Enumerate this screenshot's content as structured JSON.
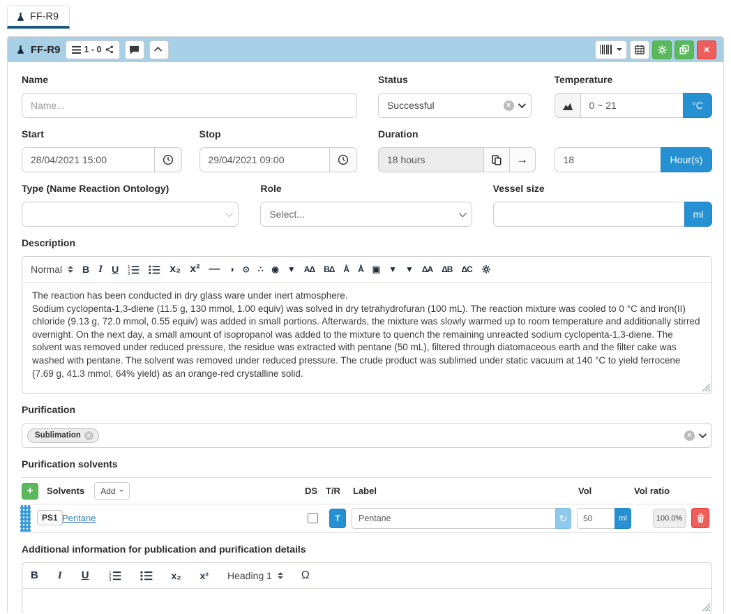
{
  "tab": {
    "label": "FF-R9"
  },
  "header": {
    "title": "FF-R9",
    "pages_badge": "1 - 0"
  },
  "icons": {
    "arrow_right": "→",
    "refresh": "↻",
    "close_x": "×",
    "plus": "+"
  },
  "form": {
    "name": {
      "label": "Name",
      "placeholder": "Name..."
    },
    "status": {
      "label": "Status",
      "value": "Successful"
    },
    "temperature": {
      "label": "Temperature",
      "value": "0 ~ 21",
      "unit": "°C"
    },
    "start": {
      "label": "Start",
      "value": "28/04/2021 15:00"
    },
    "stop": {
      "label": "Stop",
      "value": "29/04/2021 09:00"
    },
    "duration": {
      "label": "Duration",
      "display": "18 hours",
      "value": "18",
      "unit": "Hour(s)"
    },
    "type": {
      "label": "Type (Name Reaction Ontology)",
      "value": ""
    },
    "role": {
      "label": "Role",
      "placeholder": "Select..."
    },
    "vessel": {
      "label": "Vessel size",
      "value": "",
      "unit": "ml"
    }
  },
  "description": {
    "label": "Description",
    "toolbar": {
      "format": "Normal",
      "bold": "B",
      "italic": "I",
      "underline": "U",
      "subscript": "x₂",
      "superscript": "x²",
      "divider": "—",
      "custom": [
        {
          "name": "half-circle-icon",
          "glyph": "◑"
        },
        {
          "name": "drop-icon",
          "glyph": "⊙"
        },
        {
          "name": "molecule-dots-icon",
          "glyph": "∴"
        },
        {
          "name": "target-circle-icon",
          "glyph": "◉"
        },
        {
          "name": "funnel-p-icon",
          "glyph": "▼"
        },
        {
          "name": "flask-a-icon",
          "glyph": "AΔ"
        },
        {
          "name": "flask-b-icon",
          "glyph": "BΔ"
        },
        {
          "name": "figure-a-icon",
          "glyph": "Å"
        },
        {
          "name": "figure-b-icon",
          "glyph": "Å"
        },
        {
          "name": "note-box-icon",
          "glyph": "▣"
        },
        {
          "name": "funnel-in-icon",
          "glyph": "▼"
        },
        {
          "name": "funnel-out-icon",
          "glyph": "▼"
        },
        {
          "name": "flask-ta-icon",
          "glyph": "ΔA"
        },
        {
          "name": "flask-tb-icon",
          "glyph": "ΔB"
        },
        {
          "name": "flask-tc-icon",
          "glyph": "ΔC"
        }
      ]
    },
    "paragraphs": [
      "The reaction has been conducted in dry glass ware under inert atmosphere.",
      "Sodium cyclopenta-1,3-diene (11.5 g, 130 mmol, 1.00 equiv) was solved in dry tetrahydrofuran (100 mL). The reaction mixture was cooled to 0 °C and iron(II) chloride (9.13 g, 72.0 mmol, 0.55 equiv) was added in small portions. Afterwards, the mixture was slowly warmed up to room temperature and additionally stirred overnight. On the next day, a small amount of isopropanol was added to the mixture to quench the remaining unreacted sodium cyclopenta-1,3-diene. The solvent was removed under reduced pressure, the residue was extracted with pentane (50 mL), filtered through diatomaceous earth and the filter cake was washed with pentane. The solvent was removed under reduced pressure. The crude product was sublimed under static vacuum at 140 °C to yield ferrocene (7.69 g, 41.3 mmol, 64% yield) as an orange-red crystalline solid."
    ]
  },
  "purification": {
    "label": "Purification",
    "tags": [
      {
        "label": "Sublimation"
      }
    ]
  },
  "solvents": {
    "label": "Purification solvents",
    "group_title": "Solvents",
    "add_button": "Add",
    "columns": {
      "ds": "DS",
      "tr": "T/R",
      "name": "Label",
      "vol": "Vol",
      "ratio": "Vol ratio"
    },
    "rows": [
      {
        "code": "PS1",
        "link": "Pentane",
        "tr": "T",
        "name": "Pentane",
        "vol": "50",
        "vol_unit": "ml",
        "ratio": "100.0%"
      }
    ]
  },
  "additional": {
    "label": "Additional information for publication and purification details",
    "toolbar": {
      "bold": "B",
      "italic": "I",
      "underline": "U",
      "subscript": "x₂",
      "superscript": "x²",
      "heading": "Heading 1",
      "omega": "Ω"
    }
  },
  "colors": {
    "heading_bg": "#a7cfe5",
    "tab_underline": "#19577f",
    "primary_blue": "#2590d2",
    "green": "#5cb85c",
    "red": "#ee5f5b",
    "drag_strip": "#3a99d4"
  }
}
